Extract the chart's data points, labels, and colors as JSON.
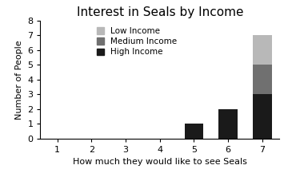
{
  "title": "Interest in Seals by Income",
  "xlabel": "How much they would like to see Seals",
  "ylabel": "Number of People",
  "x_values": [
    1,
    2,
    3,
    4,
    5,
    6,
    7
  ],
  "xlim": [
    0.5,
    7.5
  ],
  "ylim": [
    0,
    8
  ],
  "yticks": [
    0,
    1,
    2,
    3,
    4,
    5,
    6,
    7,
    8
  ],
  "xticks": [
    1,
    2,
    3,
    4,
    5,
    6,
    7
  ],
  "high_income": [
    0,
    0,
    0,
    0,
    1,
    2,
    3
  ],
  "medium_income": [
    0,
    0,
    0,
    0,
    0,
    0,
    2
  ],
  "low_income": [
    0,
    0,
    0,
    0,
    0,
    0,
    2
  ],
  "color_high": "#1a1a1a",
  "color_medium": "#707070",
  "color_low": "#b8b8b8",
  "bar_width": 0.55,
  "legend_labels": [
    "Low Income",
    "Medium Income",
    "High Income"
  ],
  "title_fontsize": 11,
  "label_fontsize": 8,
  "tick_fontsize": 8
}
